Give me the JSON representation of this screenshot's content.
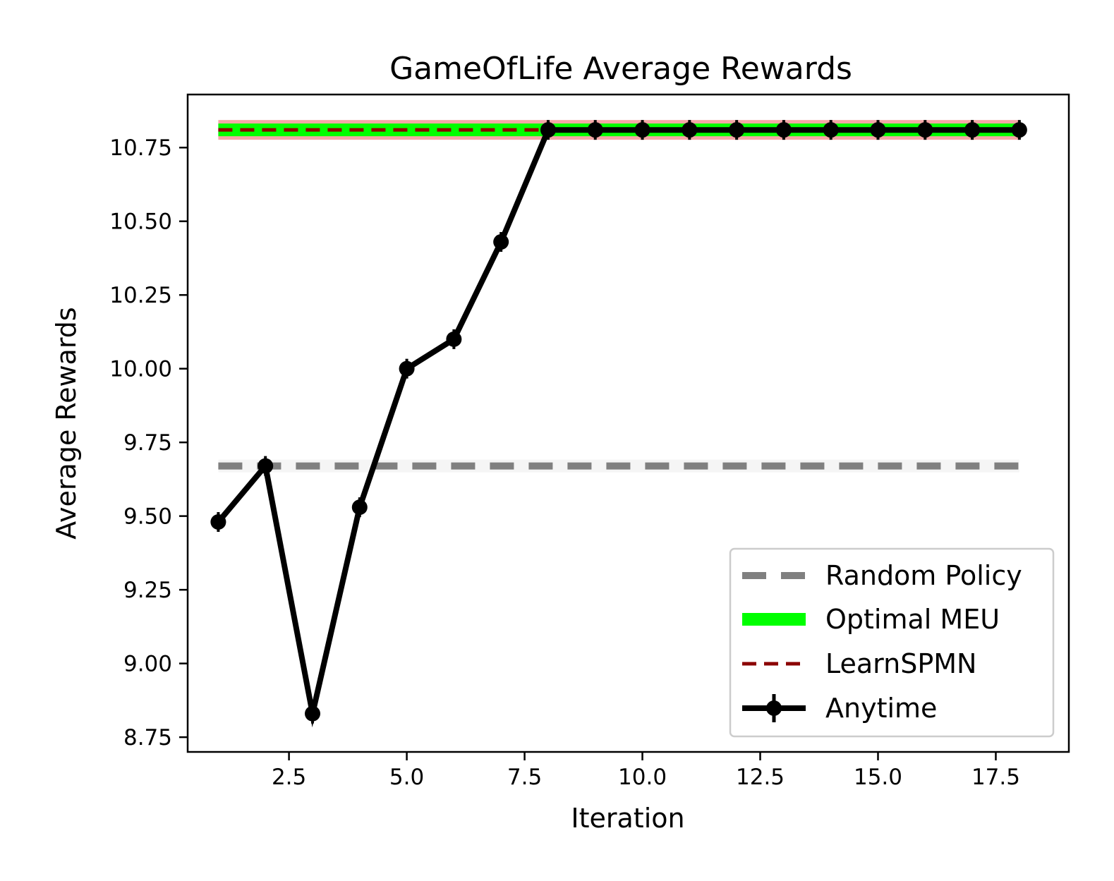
{
  "chart_data": {
    "type": "line",
    "title": "GameOfLife Average Rewards",
    "xlabel": "Iteration",
    "ylabel": "Average Rewards",
    "xlim": [
      0.35,
      19.05
    ],
    "ylim": [
      8.7,
      10.93
    ],
    "xticks": [
      2.5,
      5.0,
      7.5,
      10.0,
      12.5,
      15.0,
      17.5
    ],
    "xtick_labels": [
      "2.5",
      "5.0",
      "7.5",
      "10.0",
      "12.5",
      "15.0",
      "17.5"
    ],
    "yticks": [
      8.75,
      9.0,
      9.25,
      9.5,
      9.75,
      10.0,
      10.25,
      10.5,
      10.75
    ],
    "ytick_labels": [
      "8.75",
      "9.00",
      "9.25",
      "9.50",
      "9.75",
      "10.00",
      "10.25",
      "10.50",
      "10.75"
    ],
    "grid": false,
    "legend_position": "lower-right",
    "series": [
      {
        "name": "Random Policy",
        "style": "dashed",
        "color": "#808080",
        "band_color": "#f5f5f5",
        "x": [
          1,
          18
        ],
        "y": [
          9.67,
          9.67
        ]
      },
      {
        "name": "Optimal MEU",
        "style": "solid-thick",
        "color": "#00ff00",
        "band_color": "#f4a6a6",
        "x": [
          1,
          18
        ],
        "y": [
          10.81,
          10.81
        ]
      },
      {
        "name": "LearnSPMN",
        "style": "dashed",
        "color": "#8b0000",
        "x": [
          1,
          18
        ],
        "y": [
          10.81,
          10.81
        ]
      },
      {
        "name": "Anytime",
        "style": "solid-markers",
        "color": "#000000",
        "x": [
          1,
          2,
          3,
          4,
          5,
          6,
          7,
          8,
          9,
          10,
          11,
          12,
          13,
          14,
          15,
          16,
          17,
          18
        ],
        "y": [
          9.48,
          9.67,
          8.83,
          9.53,
          10.0,
          10.1,
          10.43,
          10.81,
          10.81,
          10.81,
          10.81,
          10.81,
          10.81,
          10.81,
          10.81,
          10.81,
          10.81,
          10.81
        ]
      }
    ]
  }
}
